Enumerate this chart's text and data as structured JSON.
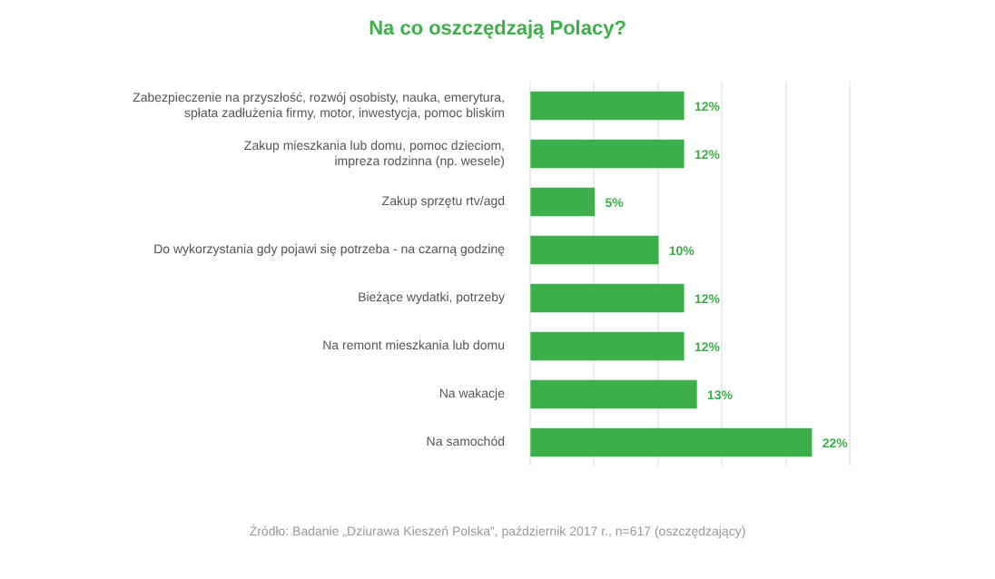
{
  "chart_data": {
    "type": "bar",
    "orientation": "horizontal",
    "title": "Na co oszczędzają Polacy?",
    "categories": [
      "Zabezpieczenie na przyszłość, rozwój osobisty, nauka, emerytura,\nspłata zadłużenia firmy, motor, inwestycja, pomoc bliskim",
      "Zakup mieszkania lub domu, pomoc dzieciom,\nimpreza rodzinna (np. wesele)",
      "Zakup sprzętu rtv/agd",
      "Do wykorzystania gdy pojawi się potrzeba - na czarną godzinę",
      "Bieżące wydatki, potrzeby",
      "Na remont mieszkania lub domu",
      "Na wakacje",
      "Na samochód"
    ],
    "values": [
      12,
      12,
      5,
      10,
      12,
      12,
      13,
      22
    ],
    "value_labels": [
      "12%",
      "12%",
      "5%",
      "10%",
      "12%",
      "12%",
      "13%",
      "22%"
    ],
    "color": "#3daf4a",
    "xlim": [
      0,
      25
    ],
    "xticks": [
      {
        "value": 0,
        "label": null
      },
      {
        "value": 5,
        "label": null
      },
      {
        "value": 10,
        "label": null
      },
      {
        "value": 15,
        "label": null
      },
      {
        "value": 20,
        "label": null
      },
      {
        "value": 25,
        "label": null
      }
    ],
    "grid": "x",
    "tick_labels": "y",
    "legend": false,
    "annotations": [
      "Źródło: Badanie „Dziurawa Kieszeń Polska”, październik 2017 r., n=617 (oszczędzający)"
    ]
  }
}
